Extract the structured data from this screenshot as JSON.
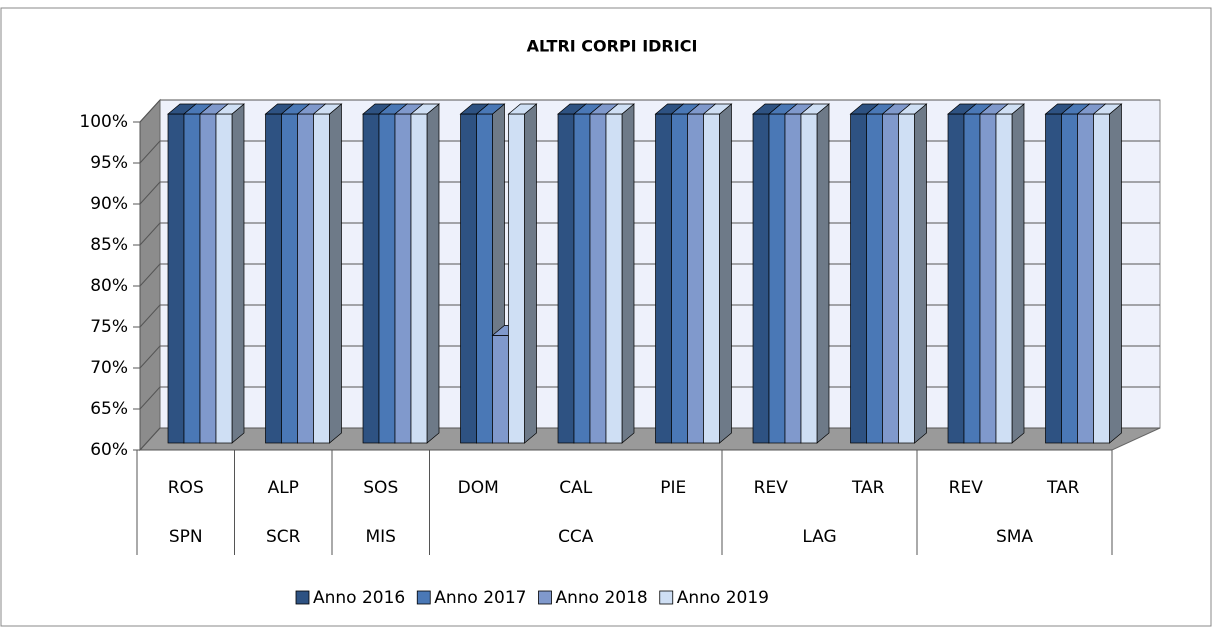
{
  "chart_data": {
    "type": "bar3d",
    "title": "ALTRI CORPI IDRICI",
    "groups": [
      {
        "name": "SPN",
        "categories": [
          "ROS"
        ]
      },
      {
        "name": "SCR",
        "categories": [
          "ALP"
        ]
      },
      {
        "name": "MIS",
        "categories": [
          "SOS"
        ]
      },
      {
        "name": "CCA",
        "categories": [
          "DOM",
          "CAL",
          "PIE"
        ]
      },
      {
        "name": "LAG",
        "categories": [
          "REV",
          "TAR"
        ]
      },
      {
        "name": "SMA",
        "categories": [
          "REV",
          "TAR"
        ]
      }
    ],
    "series": [
      {
        "name": "Anno 2016",
        "color": "#2e5282",
        "values": [
          100,
          100,
          100,
          100,
          100,
          100,
          100,
          100,
          100,
          100
        ]
      },
      {
        "name": "Anno 2017",
        "color": "#4a78b6",
        "values": [
          100,
          100,
          100,
          100,
          100,
          100,
          100,
          100,
          100,
          100
        ]
      },
      {
        "name": "Anno 2018",
        "color": "#8099cc",
        "values": [
          100,
          100,
          100,
          73,
          100,
          100,
          100,
          100,
          100,
          100
        ]
      },
      {
        "name": "Anno 2019",
        "color": "#cfdff4",
        "values": [
          100,
          100,
          100,
          100,
          100,
          100,
          100,
          100,
          100,
          100
        ]
      }
    ],
    "ylim": [
      60,
      100
    ],
    "yticks": [
      {
        "value": 60,
        "label": "60%"
      },
      {
        "value": 65,
        "label": "65%"
      },
      {
        "value": 70,
        "label": "70%"
      },
      {
        "value": 75,
        "label": "75%"
      },
      {
        "value": 80,
        "label": "80%"
      },
      {
        "value": 85,
        "label": "85%"
      },
      {
        "value": 90,
        "label": "90%"
      },
      {
        "value": 95,
        "label": "95%"
      },
      {
        "value": 100,
        "label": "100%"
      }
    ],
    "grid": true,
    "legend": "bottom"
  }
}
